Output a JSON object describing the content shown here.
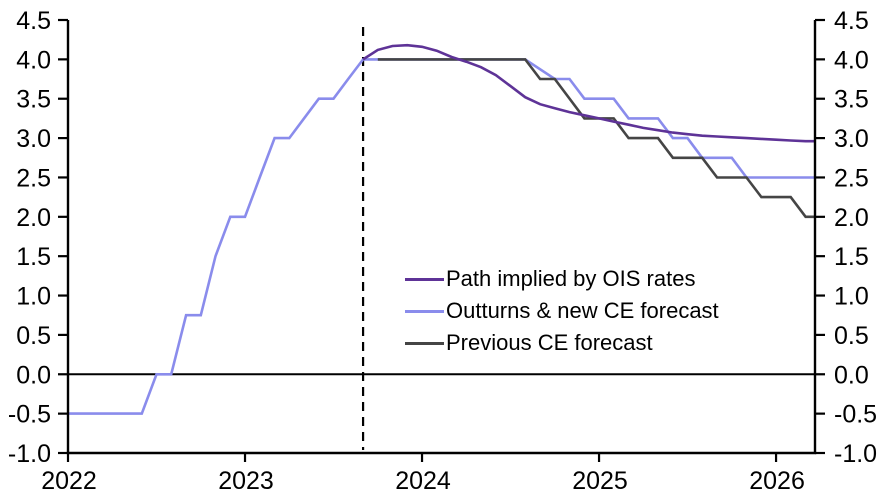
{
  "chart_data": {
    "type": "line",
    "title": "",
    "x_axis": {
      "min": 2022.0,
      "max": 2026.22,
      "tick_values": [
        2022,
        2023,
        2024,
        2025,
        2026
      ],
      "tick_labels": [
        "2022",
        "2023",
        "2024",
        "2025",
        "2026"
      ]
    },
    "y_axis_left": {
      "min": -1.0,
      "max": 4.5,
      "tick_values": [
        4.5,
        4.0,
        3.5,
        3.0,
        2.5,
        2.0,
        1.5,
        1.0,
        0.5,
        0.0,
        -0.5,
        -1.0
      ],
      "tick_labels": [
        "4.5",
        "4.0",
        "3.5",
        "3.0",
        "2.5",
        "2.0",
        "1.5",
        "1.0",
        "0.5",
        "0.0",
        "-0.5",
        "-1.0"
      ]
    },
    "y_axis_right": {
      "mirror_of_left": true,
      "tick_labels": [
        "4.5",
        "4.0",
        "3.5",
        "3.0",
        "2.5",
        "2.0",
        "1.5",
        "1.0",
        "0.5",
        "0.0",
        "-0.5",
        "-1.0"
      ]
    },
    "zero_line_y": 0.0,
    "forecast_start_x": 2023.667,
    "grid": "off",
    "legend_position": "inside-middle-right",
    "series": [
      {
        "name": "Path implied by OIS rates",
        "color": "#5E3397",
        "z": 3,
        "points": [
          [
            2023.667,
            4.0
          ],
          [
            2023.75,
            4.12
          ],
          [
            2023.833,
            4.17
          ],
          [
            2023.917,
            4.18
          ],
          [
            2024.0,
            4.16
          ],
          [
            2024.083,
            4.11
          ],
          [
            2024.167,
            4.03
          ],
          [
            2024.25,
            3.97
          ],
          [
            2024.333,
            3.9
          ],
          [
            2024.417,
            3.8
          ],
          [
            2024.5,
            3.66
          ],
          [
            2024.583,
            3.52
          ],
          [
            2024.667,
            3.43
          ],
          [
            2024.75,
            3.38
          ],
          [
            2024.833,
            3.33
          ],
          [
            2024.917,
            3.29
          ],
          [
            2025.0,
            3.25
          ],
          [
            2025.083,
            3.21
          ],
          [
            2025.167,
            3.17
          ],
          [
            2025.25,
            3.13
          ],
          [
            2025.333,
            3.1
          ],
          [
            2025.417,
            3.07
          ],
          [
            2025.5,
            3.05
          ],
          [
            2025.583,
            3.03
          ],
          [
            2025.667,
            3.02
          ],
          [
            2025.75,
            3.01
          ],
          [
            2025.833,
            3.0
          ],
          [
            2025.917,
            2.99
          ],
          [
            2026.0,
            2.98
          ],
          [
            2026.083,
            2.97
          ],
          [
            2026.167,
            2.96
          ],
          [
            2026.22,
            2.96
          ]
        ]
      },
      {
        "name": "Outturns & new CE forecast",
        "color": "#8A8CEC",
        "z": 1,
        "points": [
          [
            2022.0,
            -0.5
          ],
          [
            2022.417,
            -0.5
          ],
          [
            2022.5,
            0.0
          ],
          [
            2022.583,
            0.0
          ],
          [
            2022.667,
            0.75
          ],
          [
            2022.75,
            0.75
          ],
          [
            2022.833,
            1.5
          ],
          [
            2022.917,
            2.0
          ],
          [
            2023.0,
            2.0
          ],
          [
            2023.083,
            2.5
          ],
          [
            2023.167,
            3.0
          ],
          [
            2023.25,
            3.0
          ],
          [
            2023.417,
            3.5
          ],
          [
            2023.5,
            3.5
          ],
          [
            2023.583,
            3.75
          ],
          [
            2023.667,
            4.0
          ],
          [
            2024.583,
            4.0
          ],
          [
            2024.75,
            3.75
          ],
          [
            2024.833,
            3.75
          ],
          [
            2024.917,
            3.5
          ],
          [
            2025.083,
            3.5
          ],
          [
            2025.167,
            3.25
          ],
          [
            2025.333,
            3.25
          ],
          [
            2025.417,
            3.0
          ],
          [
            2025.5,
            3.0
          ],
          [
            2025.583,
            2.75
          ],
          [
            2025.75,
            2.75
          ],
          [
            2025.833,
            2.5
          ],
          [
            2026.22,
            2.5
          ]
        ]
      },
      {
        "name": "Previous CE forecast",
        "color": "#454545",
        "z": 2,
        "points": [
          [
            2023.75,
            4.0
          ],
          [
            2024.583,
            4.0
          ],
          [
            2024.667,
            3.75
          ],
          [
            2024.75,
            3.75
          ],
          [
            2024.917,
            3.25
          ],
          [
            2025.083,
            3.25
          ],
          [
            2025.167,
            3.0
          ],
          [
            2025.333,
            3.0
          ],
          [
            2025.417,
            2.75
          ],
          [
            2025.583,
            2.75
          ],
          [
            2025.667,
            2.5
          ],
          [
            2025.833,
            2.5
          ],
          [
            2025.917,
            2.25
          ],
          [
            2026.083,
            2.25
          ],
          [
            2026.167,
            2.0
          ],
          [
            2026.22,
            2.0
          ]
        ]
      }
    ]
  }
}
